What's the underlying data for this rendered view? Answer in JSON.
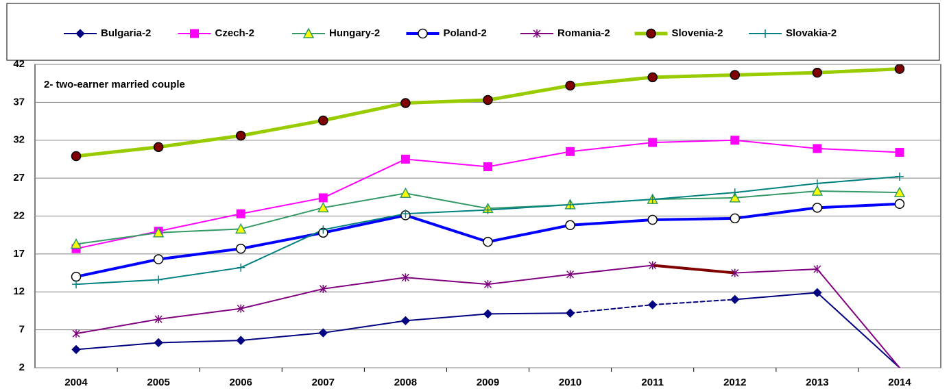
{
  "chart_data": {
    "type": "line",
    "annotation": "2- two-earner married couple",
    "categories": [
      "2004",
      "2005",
      "2006",
      "2007",
      "2008",
      "2009",
      "2010",
      "2011",
      "2012",
      "2013",
      "2014"
    ],
    "ylim": [
      2,
      42
    ],
    "yticks": [
      2,
      7,
      12,
      17,
      22,
      27,
      32,
      37,
      42
    ],
    "grid": true,
    "series": [
      {
        "name": "Bulgaria-2",
        "color": "#000080",
        "marker": "diamond",
        "width": 2,
        "dashed_segments": [
          6,
          7
        ],
        "values": [
          4.4,
          5.3,
          5.6,
          6.6,
          8.2,
          9.1,
          9.2,
          10.3,
          11.0,
          11.9,
          2
        ]
      },
      {
        "name": "Czech-2",
        "color": "#ff00ff",
        "marker": "square",
        "width": 2,
        "values": [
          17.7,
          20.0,
          22.3,
          24.4,
          29.5,
          28.5,
          30.5,
          31.7,
          32.0,
          30.9,
          30.4
        ]
      },
      {
        "name": "Hungary-2",
        "color": "#339966",
        "marker": "triangle",
        "marker_fill": "#ffff00",
        "width": 2,
        "values": [
          18.3,
          19.8,
          20.3,
          23.1,
          25.0,
          23.0,
          23.5,
          24.2,
          24.4,
          25.3,
          25.1
        ]
      },
      {
        "name": "Poland-2",
        "color": "#0000ff",
        "marker": "circle",
        "marker_fill": "#ffffff",
        "marker_stroke": "#000000",
        "width": 4,
        "values": [
          14.0,
          16.3,
          17.7,
          19.8,
          22.1,
          18.6,
          20.8,
          21.5,
          21.7,
          23.1,
          23.6
        ]
      },
      {
        "name": "Romania-2",
        "color": "#800080",
        "marker": "star",
        "width": 2,
        "highlight_segments": [
          7
        ],
        "highlight_color": "#800000",
        "values": [
          6.5,
          8.4,
          9.8,
          12.4,
          13.9,
          13.0,
          14.3,
          15.5,
          14.5,
          15.0,
          2
        ]
      },
      {
        "name": "Slovenia-2",
        "color": "#99cc00",
        "marker": "circle",
        "marker_fill": "#800000",
        "marker_stroke": "#000000",
        "width": 5,
        "values": [
          29.9,
          31.1,
          32.6,
          34.6,
          36.9,
          37.3,
          39.2,
          40.3,
          40.6,
          40.9,
          41.4
        ]
      },
      {
        "name": "Slovakia-2",
        "color": "#008080",
        "marker": "plus",
        "width": 2,
        "values": [
          13.0,
          13.6,
          15.2,
          20.2,
          22.3,
          22.8,
          23.5,
          24.2,
          25.1,
          26.3,
          27.2
        ]
      }
    ]
  }
}
